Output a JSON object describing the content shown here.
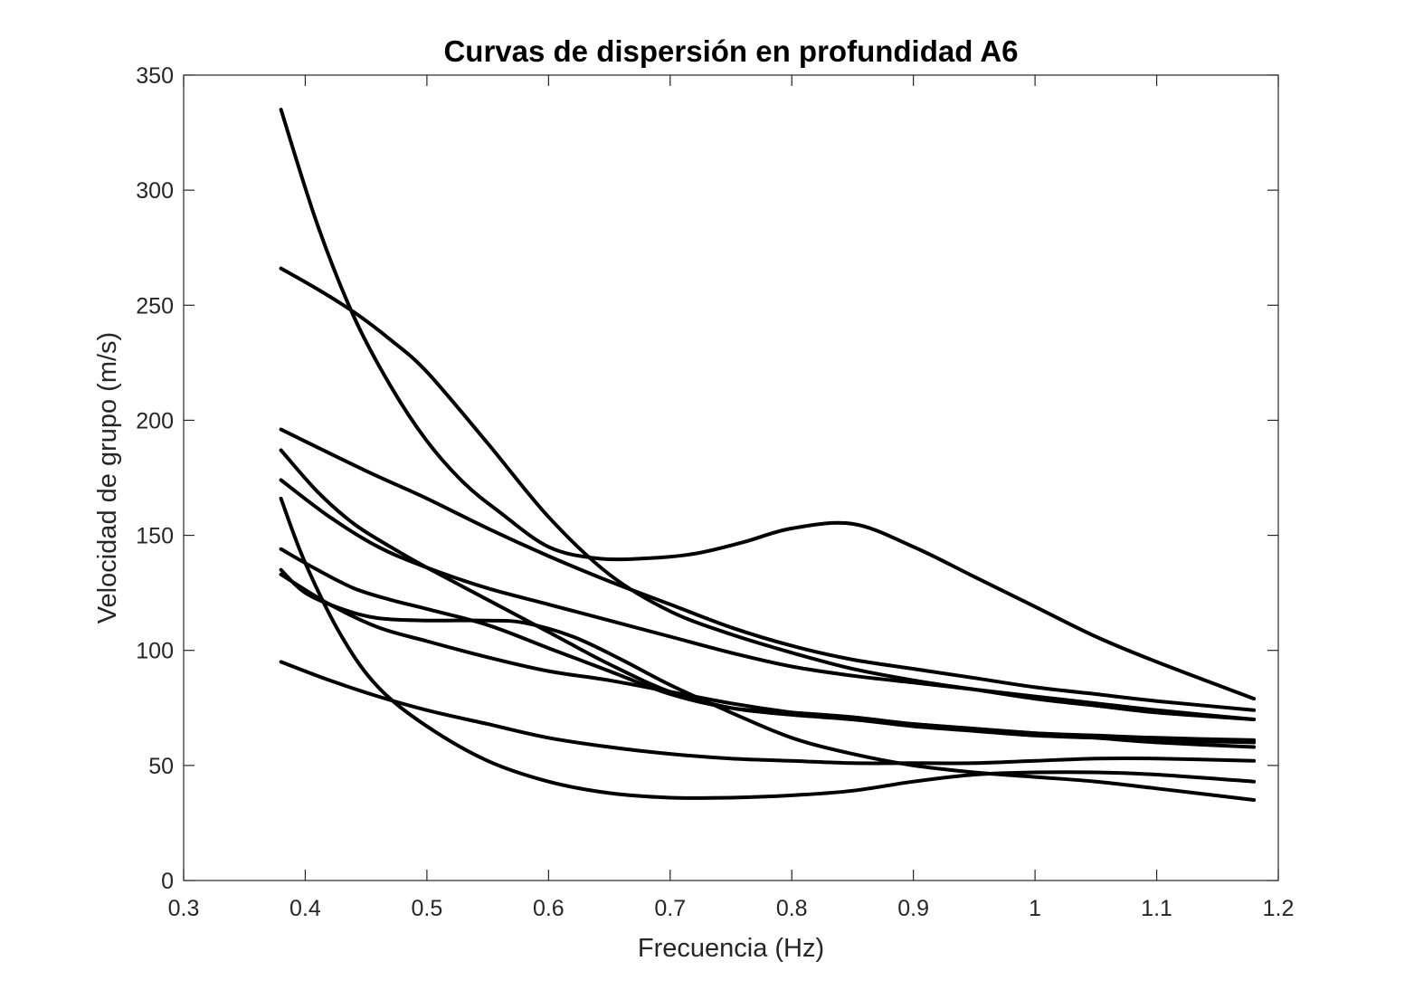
{
  "chart_data": {
    "type": "line",
    "title": "Curvas de dispersión en profundidad A6",
    "xlabel": "Frecuencia (Hz)",
    "ylabel": "Velocidad de grupo (m/s)",
    "xlim": [
      0.3,
      1.2
    ],
    "ylim": [
      0,
      350
    ],
    "xticks": [
      0.3,
      0.4,
      0.5,
      0.6,
      0.7,
      0.8,
      0.9,
      1,
      1.1,
      1.2
    ],
    "xtick_labels": [
      "0.3",
      "0.4",
      "0.5",
      "0.6",
      "0.7",
      "0.8",
      "0.9",
      "1",
      "1.1",
      "1.2"
    ],
    "yticks": [
      0,
      50,
      100,
      150,
      200,
      250,
      300,
      350
    ],
    "ytick_labels": [
      "0",
      "50",
      "100",
      "150",
      "200",
      "250",
      "300",
      "350"
    ],
    "grid": false,
    "colors": {
      "line": "#000000",
      "axis": "#262626",
      "background": "#ffffff"
    },
    "series": [
      {
        "x": [
          0.38,
          0.41,
          0.44,
          0.47,
          0.5,
          0.53,
          0.56,
          0.6,
          0.64,
          0.68,
          0.72,
          0.76,
          0.8,
          0.85,
          0.9,
          0.95,
          1.0,
          1.05,
          1.1,
          1.18
        ],
        "y": [
          335,
          285,
          245,
          215,
          191,
          173,
          160,
          145,
          140,
          140,
          142,
          147,
          153,
          155,
          145,
          132,
          119,
          106,
          95,
          79
        ]
      },
      {
        "x": [
          0.38,
          0.41,
          0.44,
          0.47,
          0.5,
          0.55,
          0.6,
          0.65,
          0.7,
          0.75,
          0.8,
          0.85,
          0.9,
          0.95,
          1.0,
          1.05,
          1.1,
          1.18
        ],
        "y": [
          266,
          257,
          247,
          235,
          221,
          190,
          158,
          133,
          117,
          107,
          99,
          92,
          87,
          83,
          79,
          76,
          73,
          70
        ]
      },
      {
        "x": [
          0.38,
          0.45,
          0.5,
          0.55,
          0.6,
          0.65,
          0.7,
          0.75,
          0.8,
          0.85,
          0.9,
          0.95,
          1.0,
          1.05,
          1.1,
          1.18
        ],
        "y": [
          196,
          178,
          166,
          153,
          141,
          130,
          120,
          110,
          102,
          96,
          92,
          88,
          84,
          81,
          78,
          74
        ]
      },
      {
        "x": [
          0.38,
          0.42,
          0.46,
          0.5,
          0.55,
          0.6,
          0.65,
          0.7,
          0.75,
          0.8,
          0.85,
          0.9,
          0.95,
          1.0,
          1.05,
          1.1,
          1.18
        ],
        "y": [
          174,
          158,
          145,
          136,
          127,
          120,
          113,
          106,
          99,
          93,
          89,
          86,
          83,
          80,
          77,
          74,
          70
        ]
      },
      {
        "x": [
          0.38,
          0.41,
          0.44,
          0.47,
          0.5,
          0.55,
          0.6,
          0.65,
          0.7,
          0.75,
          0.8,
          0.85,
          0.9,
          0.95,
          1.0,
          1.05,
          1.1,
          1.18
        ],
        "y": [
          187,
          169,
          155,
          145,
          136,
          122,
          108,
          94,
          82,
          75,
          72,
          70,
          67,
          65,
          63,
          62,
          61,
          60
        ]
      },
      {
        "x": [
          0.38,
          0.41,
          0.44,
          0.47,
          0.5,
          0.55,
          0.6,
          0.65,
          0.7,
          0.75,
          0.8,
          0.85,
          0.9,
          0.95,
          1.0,
          1.05,
          1.1,
          1.18
        ],
        "y": [
          144,
          135,
          127,
          122,
          118,
          111,
          101,
          91,
          81,
          75,
          73,
          71,
          68,
          66,
          64,
          62,
          60,
          58
        ]
      },
      {
        "x": [
          0.38,
          0.4,
          0.43,
          0.46,
          0.5,
          0.55,
          0.58,
          0.62,
          0.66,
          0.7,
          0.75,
          0.8,
          0.85,
          0.9,
          0.95,
          1.0,
          1.05,
          1.1,
          1.18
        ],
        "y": [
          135,
          125,
          118,
          114,
          113,
          113,
          112,
          106,
          96,
          85,
          73,
          62,
          55,
          50,
          47,
          45,
          43,
          40,
          35
        ]
      },
      {
        "x": [
          0.38,
          0.42,
          0.46,
          0.5,
          0.55,
          0.6,
          0.65,
          0.7,
          0.75,
          0.8,
          0.85,
          0.9,
          0.95,
          1.0,
          1.05,
          1.1,
          1.18
        ],
        "y": [
          133,
          120,
          110,
          104,
          97,
          91,
          87,
          82,
          77,
          73,
          70,
          68,
          66,
          64,
          63,
          62,
          61
        ]
      },
      {
        "x": [
          0.38,
          0.4,
          0.43,
          0.46,
          0.5,
          0.55,
          0.6,
          0.65,
          0.7,
          0.75,
          0.8,
          0.85,
          0.9,
          0.95,
          1.0,
          1.05,
          1.1,
          1.18
        ],
        "y": [
          166,
          138,
          106,
          84,
          67,
          52,
          43,
          38,
          36,
          36,
          37,
          39,
          43,
          46,
          47,
          47,
          46,
          43
        ]
      },
      {
        "x": [
          0.38,
          0.42,
          0.46,
          0.5,
          0.55,
          0.6,
          0.65,
          0.7,
          0.75,
          0.8,
          0.85,
          0.9,
          0.95,
          1.0,
          1.05,
          1.1,
          1.18
        ],
        "y": [
          95,
          87,
          80,
          74,
          68,
          62,
          58,
          55,
          53,
          52,
          51,
          51,
          51,
          52,
          53,
          53,
          52
        ]
      }
    ]
  }
}
